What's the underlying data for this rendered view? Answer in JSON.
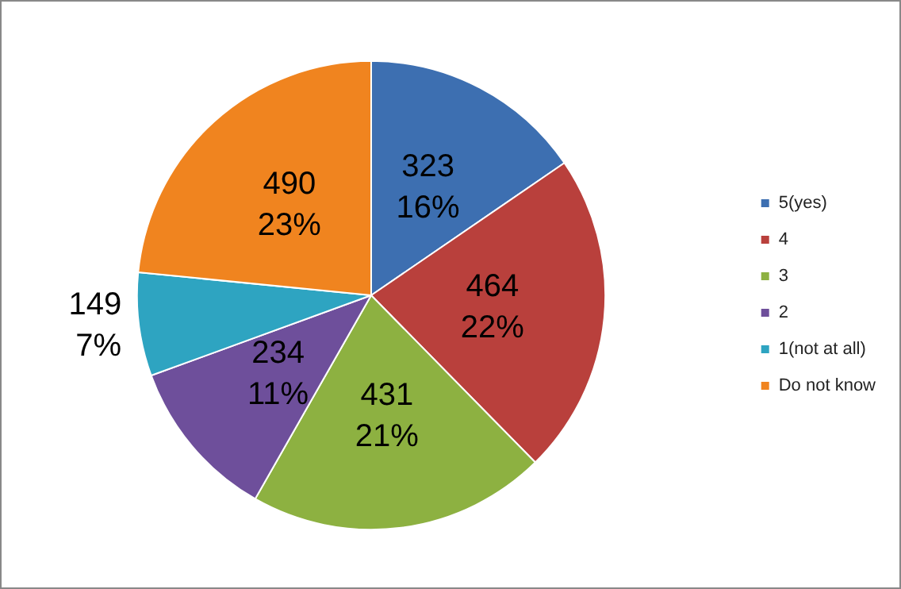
{
  "chart_data": {
    "type": "pie",
    "categories": [
      "5(yes)",
      "4",
      "3",
      "2",
      "1(not at all)",
      "Do not know"
    ],
    "values": [
      323,
      464,
      431,
      234,
      149,
      490
    ],
    "colors": [
      "#3d6fb1",
      "#b9403c",
      "#8db141",
      "#6e4f9b",
      "#2ea4c1",
      "#f0841f"
    ],
    "value_labels": [
      "323\n16%",
      "464\n22%",
      "431\n21%",
      "234\n11%",
      "149\n7%",
      "490\n23%"
    ],
    "legend": "right"
  }
}
